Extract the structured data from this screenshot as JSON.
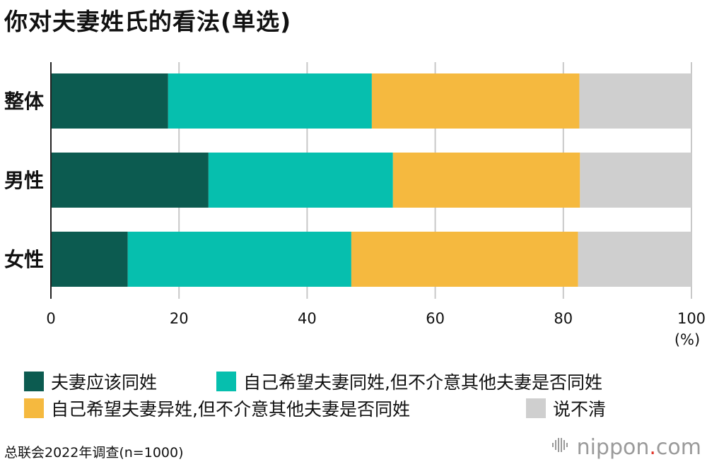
{
  "title": "你对夫妻姓氏的看法(单选)",
  "source": "总联会2022年调查(n=1000)",
  "brand": {
    "name": "nippon",
    "dot": ".",
    "tld": "com",
    "icon": "nippon-wave-icon",
    "dot_color": "#e1352a"
  },
  "chart_data": {
    "type": "bar",
    "orientation": "horizontal",
    "stacked": true,
    "categories": [
      "整体",
      "男性",
      "女性"
    ],
    "xlim": [
      0,
      100
    ],
    "xticks": [
      "0",
      "20",
      "40",
      "60",
      "80",
      "100"
    ],
    "xunit": "(%)",
    "grid": true,
    "legend_position": "bottom",
    "series": [
      {
        "name": "夫妻应该同姓",
        "color": "#0c5b50",
        "values": [
          18.3,
          24.6,
          12.0
        ]
      },
      {
        "name": "自己希望夫妻同姓,但不介意其他夫妻是否同姓",
        "color": "#06bfae",
        "values": [
          31.8,
          28.8,
          34.9
        ]
      },
      {
        "name": "自己希望夫妻异姓,但不介意其他夫妻是否同姓",
        "color": "#f5b93f",
        "values": [
          32.4,
          29.2,
          35.4
        ]
      },
      {
        "name": "说不清",
        "color": "#cfcfcf",
        "values": [
          17.5,
          17.4,
          17.7
        ]
      }
    ]
  }
}
